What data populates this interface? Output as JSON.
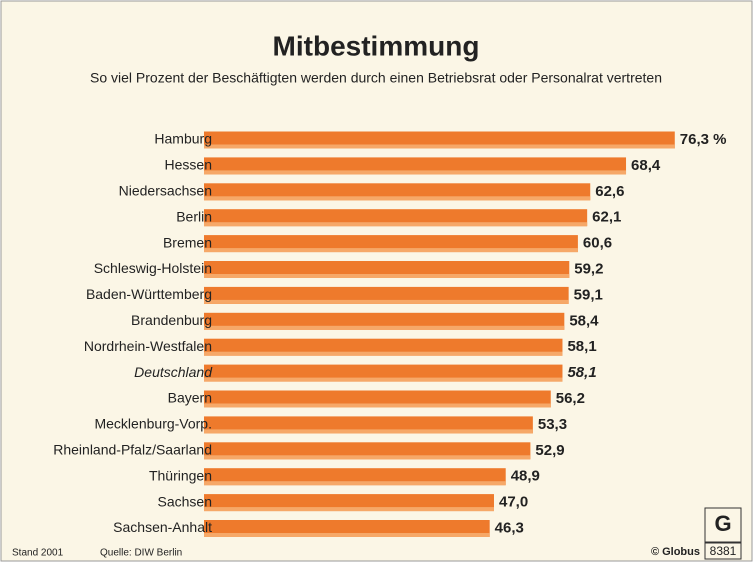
{
  "chart_data": {
    "type": "bar",
    "orientation": "horizontal",
    "title": "Mitbestimmung",
    "subtitle": "So viel Prozent der Beschäftigten werden durch einen Betriebsrat oder Personalrat vertreten",
    "categories": [
      "Hamburg",
      "Hessen",
      "Niedersachsen",
      "Berlin",
      "Bremen",
      "Schleswig-Holstein",
      "Baden-Württemberg",
      "Brandenburg",
      "Nordrhein-Westfalen",
      "Deutschland",
      "Bayern",
      "Mecklenburg-Vorp.",
      "Rheinland-Pfalz/Saarland",
      "Thüringen",
      "Sachsen",
      "Sachsen-Anhalt"
    ],
    "values": [
      76.3,
      68.4,
      62.6,
      62.1,
      60.6,
      59.2,
      59.1,
      58.4,
      58.1,
      58.1,
      56.2,
      53.3,
      52.9,
      48.9,
      47.0,
      46.3
    ],
    "value_labels": [
      "76,3 %",
      "68,4",
      "62,6",
      "62,1",
      "60,6",
      "59,2",
      "59,1",
      "58,4",
      "58,1",
      "58,1",
      "56,2",
      "53,3",
      "52,9",
      "48,9",
      "47,0",
      "46,3"
    ],
    "color": "#ee7a2c",
    "footer": {
      "date": "Stand 2001",
      "source": "Quelle: DIW Berlin",
      "publisher": "© Globus",
      "number": "8381"
    }
  }
}
